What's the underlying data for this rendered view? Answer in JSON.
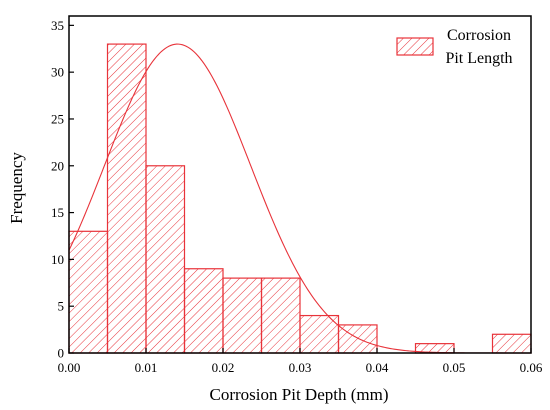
{
  "chart_data": {
    "type": "bar",
    "title": "",
    "xlabel": "Corrosion Pit Depth (mm)",
    "ylabel": "Frequency",
    "xlim": [
      0,
      0.06
    ],
    "ylim": [
      0,
      36
    ],
    "xticks": [
      0,
      0.01,
      0.02,
      0.03,
      0.04,
      0.05,
      0.06
    ],
    "xtick_labels": [
      "0.00",
      "0.01",
      "0.02",
      "0.03",
      "0.04",
      "0.05",
      "0.06"
    ],
    "yticks": [
      0,
      5,
      10,
      15,
      20,
      25,
      30,
      35
    ],
    "ytick_labels": [
      "0",
      "5",
      "10",
      "15",
      "20",
      "25",
      "30",
      "35"
    ],
    "bin_width": 0.005,
    "bin_starts": [
      0,
      0.005,
      0.01,
      0.015,
      0.02,
      0.025,
      0.03,
      0.035,
      0.04,
      0.045,
      0.05,
      0.055
    ],
    "values": [
      13,
      33,
      20,
      9,
      8,
      8,
      4,
      3,
      0,
      1,
      0,
      2
    ],
    "series": [
      {
        "name": "Corrosion Pit Length",
        "type": "histogram",
        "fill": "hatch"
      }
    ],
    "fit_curve": {
      "type": "normal",
      "peak_value": 33,
      "mean": 0.0141,
      "sd": 0.0095
    },
    "legend": {
      "position": "top-right",
      "lines": [
        "Corrosion",
        "Pit Length"
      ]
    },
    "grid": false,
    "colors": {
      "bar": "#e8333a",
      "curve": "#e8333a",
      "axis": "#000000"
    }
  }
}
